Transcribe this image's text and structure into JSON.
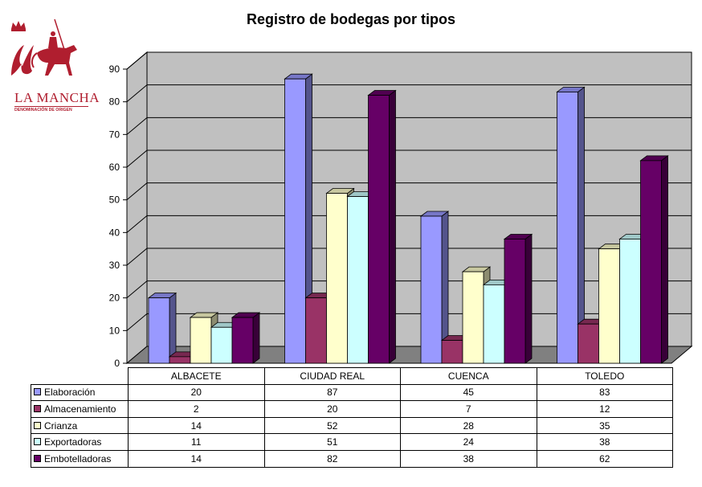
{
  "logo": {
    "text": "LA MANCHA",
    "subtext": "DENOMINACIÓN DE ORIGEN",
    "icon": "knight-on-horse-logo",
    "color": "#b01e2f"
  },
  "chart_data": {
    "type": "bar",
    "title": "Registro de bodegas por tipos",
    "categories": [
      "ALBACETE",
      "CIUDAD REAL",
      "CUENCA",
      "TOLEDO"
    ],
    "series": [
      {
        "name": "Elaboración",
        "values": [
          20,
          87,
          45,
          83
        ],
        "color": "#9999ff"
      },
      {
        "name": "Almacenamiento",
        "values": [
          2,
          20,
          7,
          12
        ],
        "color": "#993366"
      },
      {
        "name": "Crianza",
        "values": [
          14,
          52,
          28,
          35
        ],
        "color": "#ffffcc"
      },
      {
        "name": "Exportadoras",
        "values": [
          11,
          51,
          24,
          38
        ],
        "color": "#ccffff"
      },
      {
        "name": "Embotelladoras",
        "values": [
          14,
          82,
          38,
          62
        ],
        "color": "#660066"
      }
    ],
    "ylim": [
      0,
      90
    ],
    "yticks": [
      0,
      10,
      20,
      30,
      40,
      50,
      60,
      70,
      80,
      90
    ],
    "grid": true,
    "legend": "data-table-below",
    "three_d": true
  }
}
